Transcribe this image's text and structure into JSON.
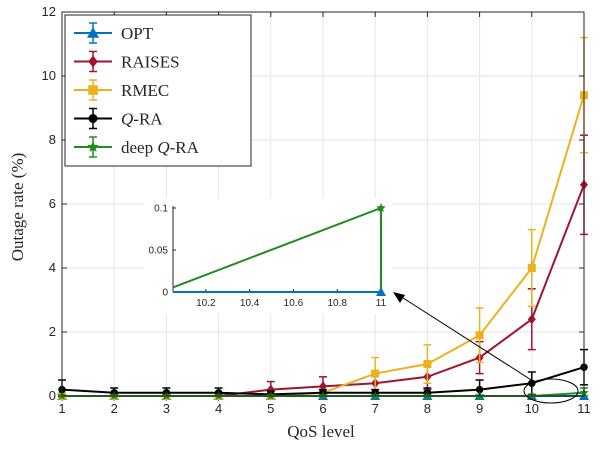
{
  "chart_data": {
    "type": "line",
    "title": "",
    "xlabel": "QoS level",
    "ylabel": "Outage rate (%)",
    "xlim": [
      1,
      11
    ],
    "ylim": [
      0,
      12
    ],
    "x_ticks": [
      "1",
      "2",
      "3",
      "4",
      "5",
      "6",
      "7",
      "8",
      "9",
      "10",
      "11"
    ],
    "y_ticks": [
      "0",
      "2",
      "4",
      "6",
      "8",
      "10",
      "12"
    ],
    "grid": true,
    "legend_position": "top-left",
    "x": [
      1,
      2,
      3,
      4,
      5,
      6,
      7,
      8,
      9,
      10,
      11
    ],
    "series": [
      {
        "name": "OPT",
        "label_html": "OPT",
        "color": "#0072BD",
        "marker": "triangle",
        "values": [
          0,
          0,
          0,
          0,
          0,
          0,
          0,
          0,
          0,
          0,
          0
        ],
        "errors": [
          0,
          0,
          0,
          0,
          0,
          0,
          0,
          0,
          0,
          0,
          0
        ]
      },
      {
        "name": "RAISES",
        "label_html": "RAISES",
        "color": "#A2142F",
        "marker": "diamond",
        "values": [
          0,
          0,
          0,
          0,
          0.2,
          0.3,
          0.4,
          0.6,
          1.2,
          2.4,
          6.6
        ],
        "errors": [
          0,
          0,
          0,
          0,
          0.25,
          0.3,
          0.3,
          0.4,
          0.5,
          0.95,
          1.55
        ]
      },
      {
        "name": "RMEC",
        "label_html": "RMEC",
        "color": "#EDB120",
        "marker": "square",
        "values": [
          0,
          0,
          0,
          0,
          0,
          0.1,
          0.7,
          1.0,
          1.9,
          4.0,
          9.4
        ],
        "errors": [
          0,
          0,
          0,
          0,
          0,
          0.1,
          0.5,
          0.6,
          0.85,
          1.2,
          1.8
        ]
      },
      {
        "name": "Q-RA",
        "label_html": "<tspan font-style=\"italic\">Q</tspan>-RA",
        "color": "#000000",
        "marker": "circle",
        "values": [
          0.2,
          0.1,
          0.1,
          0.1,
          0.05,
          0.1,
          0.1,
          0.1,
          0.2,
          0.4,
          0.9
        ],
        "errors": [
          0.3,
          0.15,
          0.15,
          0.15,
          0.1,
          0.1,
          0.1,
          0.15,
          0.3,
          0.35,
          0.55
        ]
      },
      {
        "name": "deep Q-RA",
        "label_html": "deep <tspan font-style=\"italic\">Q</tspan>-RA",
        "color": "#228B22",
        "marker": "star",
        "values": [
          0,
          0,
          0,
          0,
          0,
          0,
          0,
          0,
          0,
          0,
          0.1
        ],
        "errors": [
          0,
          0,
          0,
          0,
          0,
          0,
          0,
          0,
          0,
          0,
          0.15
        ]
      }
    ],
    "inset": {
      "xlim": [
        10.05,
        11
      ],
      "ylim": [
        0,
        0.1
      ],
      "x_ticks": [
        "10.2",
        "10.4",
        "10.6",
        "10.8",
        "11"
      ],
      "y_ticks": [
        "0",
        "0.05",
        "0.1"
      ],
      "series": [
        {
          "name": "OPT",
          "color": "#0072BD",
          "marker": "triangle",
          "points": [
            [
              10.05,
              0
            ],
            [
              11,
              0
            ]
          ]
        },
        {
          "name": "deep Q-RA",
          "color": "#228B22",
          "marker": "star",
          "points": [
            [
              10.05,
              0.0055
            ],
            [
              11,
              0.1
            ],
            [
              11,
              0
            ]
          ]
        }
      ]
    }
  }
}
